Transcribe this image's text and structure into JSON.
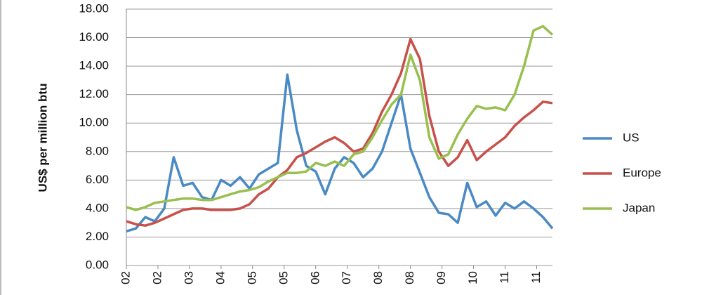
{
  "chart_data": {
    "type": "line",
    "y_label": "US$ per million btu",
    "x": [
      0,
      3,
      6,
      9,
      12,
      15,
      18,
      21,
      24,
      27,
      30,
      33,
      36,
      39,
      42,
      45,
      48,
      51,
      54,
      57,
      60,
      63,
      66,
      69,
      72,
      75,
      78,
      81,
      84,
      87,
      90,
      93,
      96,
      99,
      102,
      105,
      108,
      111,
      114,
      117,
      120,
      123,
      126,
      129,
      132,
      135
    ],
    "xlim": [
      0,
      135
    ],
    "xticks": [
      {
        "value": 0,
        "label": "02"
      },
      {
        "value": 10,
        "label": "02"
      },
      {
        "value": 20,
        "label": "03"
      },
      {
        "value": 30,
        "label": "04"
      },
      {
        "value": 40,
        "label": "05"
      },
      {
        "value": 50,
        "label": "05"
      },
      {
        "value": 60,
        "label": "06"
      },
      {
        "value": 70,
        "label": "07"
      },
      {
        "value": 80,
        "label": "08"
      },
      {
        "value": 90,
        "label": "08"
      },
      {
        "value": 100,
        "label": "09"
      },
      {
        "value": 110,
        "label": "10"
      },
      {
        "value": 120,
        "label": "11"
      },
      {
        "value": 130,
        "label": "11"
      }
    ],
    "ylim": [
      0,
      18
    ],
    "yticks": [
      {
        "value": 0,
        "label": "0.00"
      },
      {
        "value": 2,
        "label": "2.00"
      },
      {
        "value": 4,
        "label": "4.00"
      },
      {
        "value": 6,
        "label": "6.00"
      },
      {
        "value": 8,
        "label": "8.00"
      },
      {
        "value": 10,
        "label": "10.00"
      },
      {
        "value": 12,
        "label": "12.00"
      },
      {
        "value": 14,
        "label": "14.00"
      },
      {
        "value": 16,
        "label": "16.00"
      },
      {
        "value": 18,
        "label": "18.00"
      }
    ],
    "grid": true,
    "series": [
      {
        "name": "US",
        "color": "#4a8ac4",
        "values": [
          2.4,
          2.6,
          3.4,
          3.1,
          4.0,
          7.6,
          5.6,
          5.8,
          4.8,
          4.6,
          6.0,
          5.6,
          6.2,
          5.4,
          6.4,
          6.8,
          7.2,
          13.4,
          9.5,
          7.0,
          6.6,
          5.0,
          6.8,
          7.6,
          7.2,
          6.2,
          6.8,
          8.0,
          10.0,
          12.0,
          8.2,
          6.5,
          4.8,
          3.7,
          3.6,
          3.0,
          5.8,
          4.1,
          4.5,
          3.5,
          4.4,
          4.0,
          4.5,
          4.0,
          3.4,
          2.6
        ]
      },
      {
        "name": "Europe",
        "color": "#c8504b",
        "values": [
          3.1,
          2.9,
          2.8,
          3.0,
          3.3,
          3.6,
          3.9,
          4.0,
          4.0,
          3.9,
          3.9,
          3.9,
          4.0,
          4.3,
          5.0,
          5.4,
          6.2,
          6.7,
          7.6,
          7.9,
          8.3,
          8.7,
          9.0,
          8.6,
          8.0,
          8.2,
          9.3,
          10.8,
          12.0,
          13.5,
          15.9,
          14.5,
          10.5,
          8.0,
          7.0,
          7.6,
          8.8,
          7.4,
          8.0,
          8.5,
          9.0,
          9.8,
          10.4,
          10.9,
          11.5,
          11.4
        ]
      },
      {
        "name": "Japan",
        "color": "#98bf4f",
        "values": [
          4.1,
          3.9,
          4.1,
          4.4,
          4.5,
          4.6,
          4.7,
          4.7,
          4.6,
          4.6,
          4.8,
          5.0,
          5.2,
          5.3,
          5.5,
          5.9,
          6.2,
          6.5,
          6.5,
          6.6,
          7.2,
          7.0,
          7.3,
          7.0,
          7.8,
          8.0,
          9.0,
          10.2,
          11.3,
          12.0,
          14.8,
          13.0,
          9.0,
          7.5,
          7.8,
          9.2,
          10.3,
          11.2,
          11.0,
          11.1,
          10.9,
          12.0,
          14.0,
          16.5,
          16.8,
          16.2
        ]
      }
    ]
  }
}
